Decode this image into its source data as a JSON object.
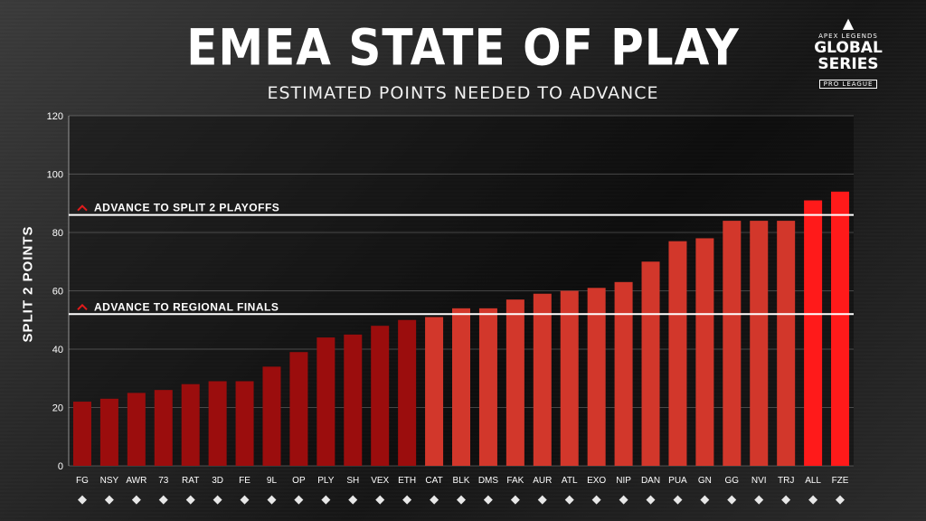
{
  "header": {
    "title": "EMEA STATE OF PLAY",
    "subtitle": "ESTIMATED POINTS NEEDED TO ADVANCE"
  },
  "logo": {
    "line1": "APEX LEGENDS",
    "line2": "GLOBAL SERIES",
    "line3": "PRO LEAGUE"
  },
  "colors": {
    "dark_red": "#9b0d0d",
    "mid_red": "#d2372b",
    "bright_red": "#ff1a1a",
    "cutoff_line": "#ffffff",
    "chevron": "#e11b1b"
  },
  "chart_data": {
    "type": "bar",
    "xlabel": "",
    "ylabel": "SPLIT 2 POINTS",
    "ylim": [
      0,
      120
    ],
    "yticks": [
      0,
      20,
      40,
      60,
      80,
      100,
      120
    ],
    "grid": true,
    "categories": [
      "FG",
      "NSY",
      "AWR",
      "73",
      "RAT",
      "3D",
      "FE",
      "9L",
      "OP",
      "PLY",
      "SH",
      "VEX",
      "ETH",
      "CAT",
      "BLK",
      "DMS",
      "FAK",
      "AUR",
      "ATL",
      "EXO",
      "NIP",
      "DAN",
      "PUA",
      "GN",
      "GG",
      "NVI",
      "TRJ",
      "ALL",
      "FZE"
    ],
    "values": [
      22,
      23,
      25,
      26,
      28,
      29,
      29,
      34,
      39,
      44,
      45,
      48,
      50,
      51,
      54,
      54,
      57,
      59,
      60,
      61,
      63,
      70,
      77,
      78,
      84,
      84,
      84,
      91,
      94
    ],
    "bar_color_groups": [
      "dark",
      "dark",
      "dark",
      "dark",
      "dark",
      "dark",
      "dark",
      "dark",
      "dark",
      "dark",
      "dark",
      "dark",
      "dark",
      "mid",
      "mid",
      "mid",
      "mid",
      "mid",
      "mid",
      "mid",
      "mid",
      "mid",
      "mid",
      "mid",
      "mid",
      "mid",
      "mid",
      "bright",
      "bright"
    ],
    "reference_lines": [
      {
        "label": "ADVANCE TO SPLIT 2 PLAYOFFS",
        "value": 86
      },
      {
        "label": "ADVANCE TO REGIONAL FINALS",
        "value": 52
      }
    ]
  }
}
